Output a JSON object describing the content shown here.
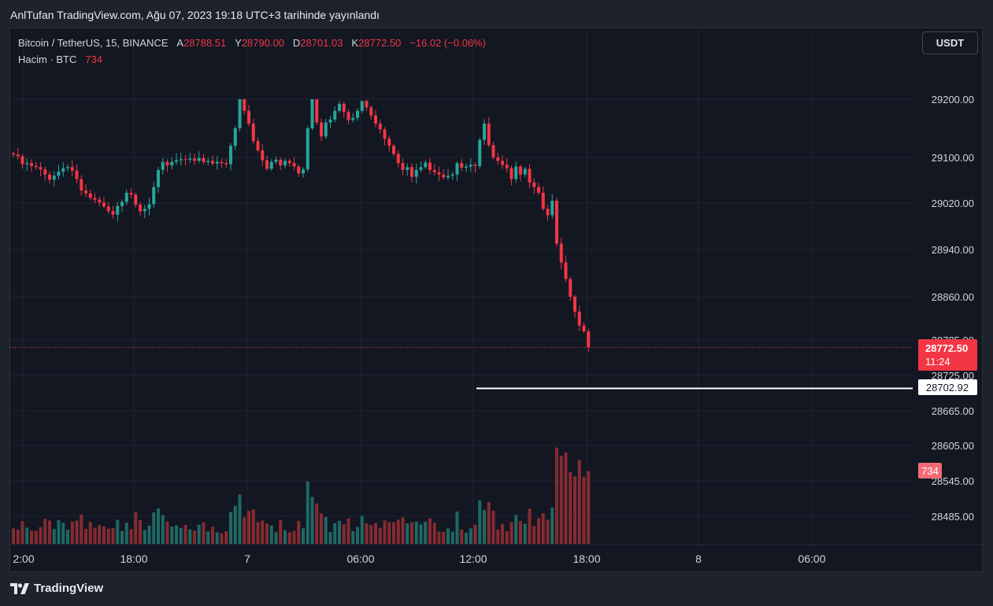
{
  "header": {
    "title": "AnlTufan TradingView.com, Ağu 07, 2023 19:18 UTC+3 tarihinde yayınlandı"
  },
  "legend": {
    "symbol": "Bitcoin / TetherUS, 15, BINANCE",
    "open_label": "A",
    "open": "28788.51",
    "high_label": "Y",
    "high": "28790.00",
    "low_label": "D",
    "low": "28701.03",
    "close_label": "K",
    "close": "28772.50",
    "change": "−16.02 (−0.06%)",
    "volume_label": "Hacim · BTC",
    "volume": "734"
  },
  "currency_button": "USDT",
  "footer": {
    "brand": "TradingView"
  },
  "colors": {
    "up": "#26a69a",
    "down": "#f23645",
    "background": "#131722",
    "marker_line": "#ffffff"
  },
  "chart_data": {
    "type": "candlestick",
    "symbol": "BTCUSDT",
    "timeframe": "15",
    "x_ticks": [
      "2:00",
      "18:00",
      "7",
      "06:00",
      "12:00",
      "18:00",
      "8",
      "06:00"
    ],
    "y_ticks": [
      "29200.00",
      "29100.00",
      "29020.00",
      "28940.00",
      "28860.00",
      "28785.00",
      "28725.00",
      "28665.00",
      "28605.00",
      "28545.00",
      "28485.00"
    ],
    "price_labels": [
      {
        "value": "28772.50",
        "sub": "11:24",
        "color": "#f23645"
      },
      {
        "value": "28702.92",
        "color": "#ffffff"
      }
    ],
    "volume_label": "734",
    "close_series": [
      29105,
      29102,
      29088,
      29090,
      29085,
      29083,
      29079,
      29070,
      29061,
      29068,
      29075,
      29081,
      29083,
      29077,
      29062,
      29042,
      29037,
      29029,
      29026,
      29021,
      29014,
      29006,
      29000,
      29015,
      29022,
      29038,
      29035,
      29017,
      29006,
      29010,
      29018,
      29048,
      29078,
      29092,
      29086,
      29092,
      29095,
      29097,
      29096,
      29098,
      29094,
      29099,
      29092,
      29094,
      29089,
      29092,
      29090,
      29088,
      29120,
      29150,
      29200,
      29180,
      29158,
      29128,
      29112,
      29095,
      29080,
      29092,
      29096,
      29086,
      29094,
      29090,
      29084,
      29072,
      29079,
      29150,
      29200,
      29160,
      29136,
      29160,
      29165,
      29180,
      29192,
      29178,
      29164,
      29168,
      29180,
      29197,
      29186,
      29172,
      29158,
      29148,
      29132,
      29120,
      29106,
      29090,
      29078,
      29083,
      29066,
      29078,
      29083,
      29091,
      29078,
      29074,
      29070,
      29065,
      29068,
      29070,
      29090,
      29082,
      29084,
      29087,
      29085,
      29130,
      29158,
      29121,
      29100,
      29094,
      29087,
      29081,
      29062,
      29084,
      29070,
      29080,
      29056,
      29048,
      29038,
      29010,
      28999,
      29024,
      28950,
      28918,
      28890,
      28860,
      28834,
      28810,
      28800,
      28773
    ]
  }
}
